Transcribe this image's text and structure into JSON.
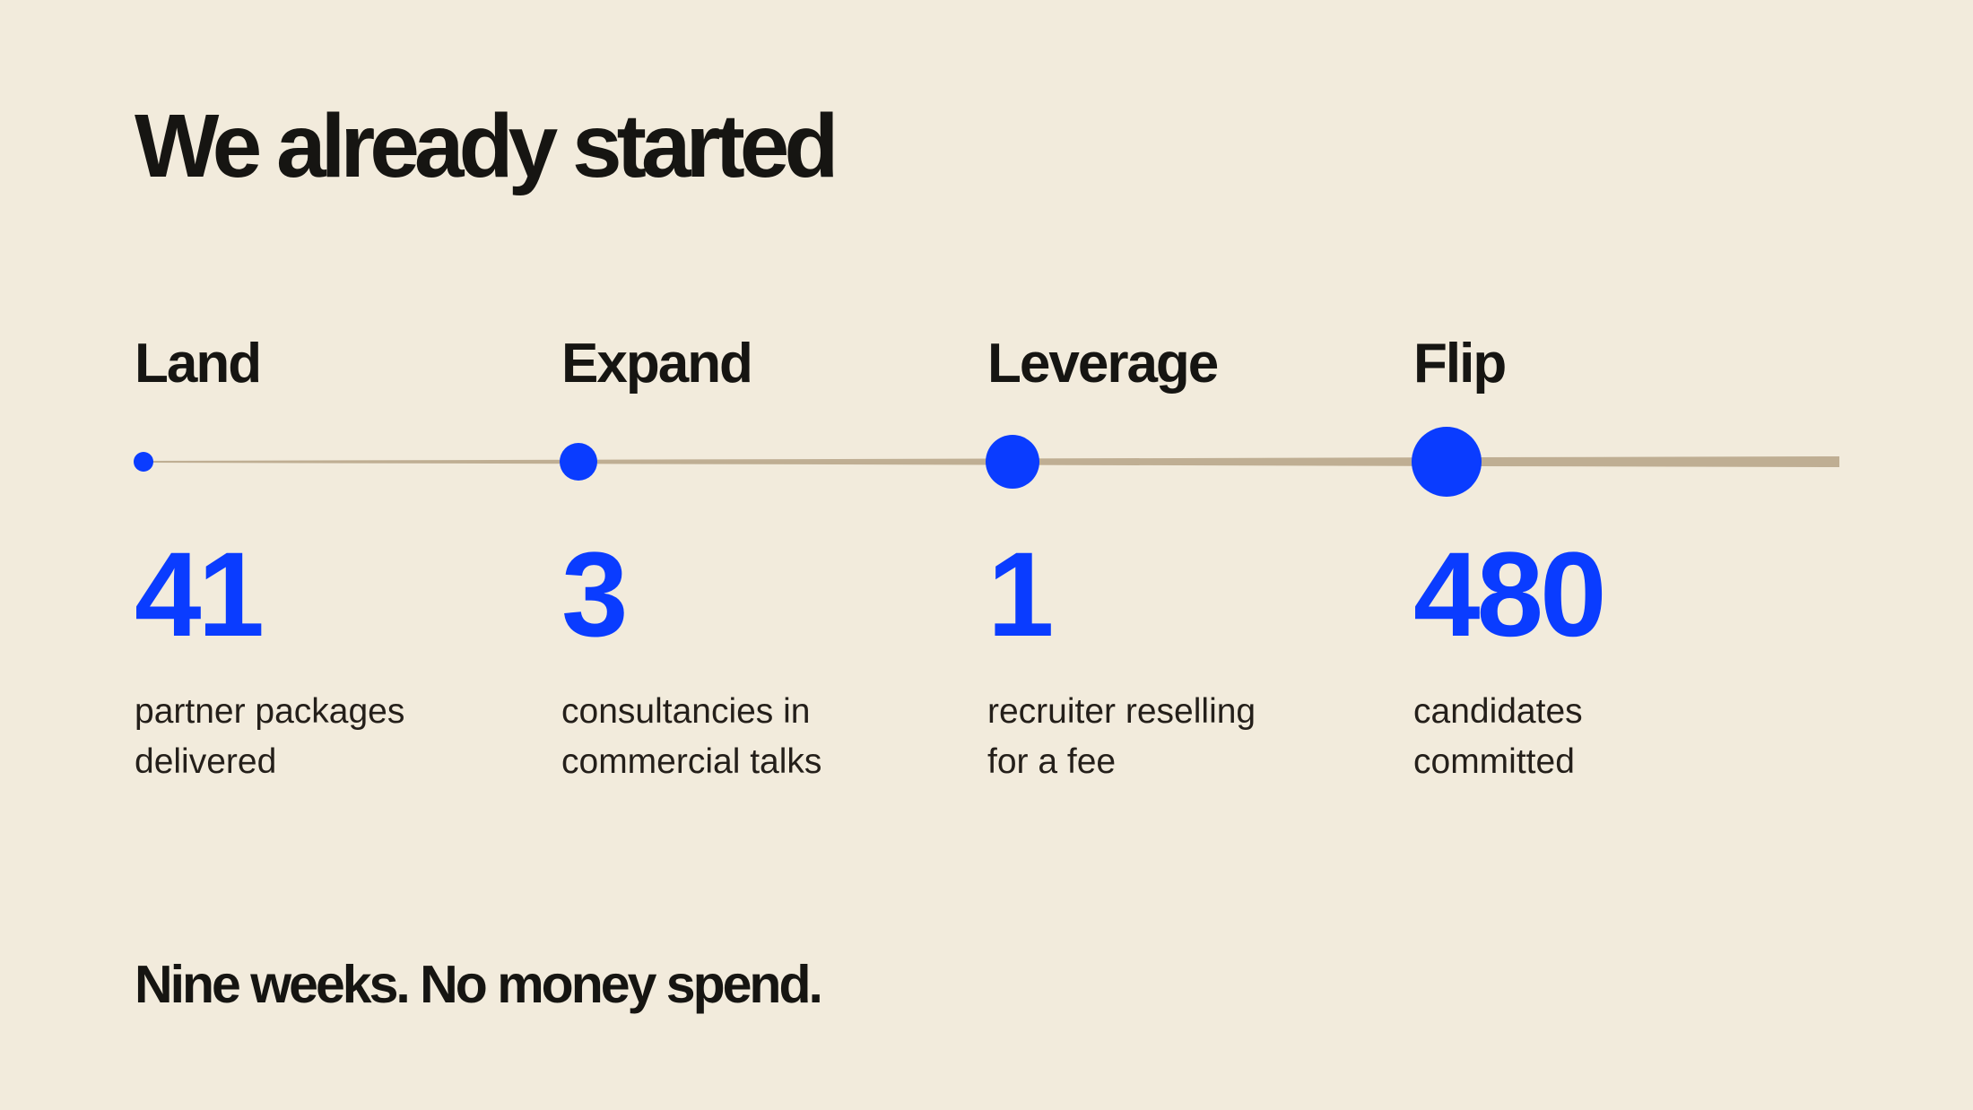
{
  "title": "We already started",
  "stages": [
    {
      "label": "Land",
      "number": "41",
      "description": [
        "partner packages",
        "delivered"
      ]
    },
    {
      "label": "Expand",
      "number": "3",
      "description": [
        "consultancies in",
        "commercial talks"
      ]
    },
    {
      "label": "Leverage",
      "number": "1",
      "description": [
        "recruiter reselling",
        "for a fee"
      ]
    },
    {
      "label": "Flip",
      "number": "480",
      "description": [
        "candidates",
        "committed"
      ]
    }
  ],
  "footer": "Nine weeks. No money spend."
}
